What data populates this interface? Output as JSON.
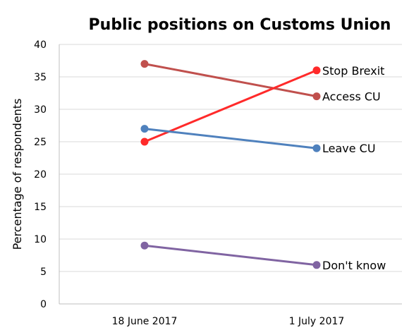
{
  "chart_data": {
    "type": "line",
    "title": "Public positions on Customs Union",
    "xlabel": "",
    "ylabel": "Percentage of respondents",
    "categories": [
      "18 June 2017",
      "1 July 2017"
    ],
    "ylim": [
      0,
      40
    ],
    "yticks": [
      0,
      5,
      10,
      15,
      20,
      25,
      30,
      35,
      40
    ],
    "grid": true,
    "legend": "none",
    "series": [
      {
        "name": "Access CU",
        "values": [
          37,
          32
        ],
        "color": "#C0504D"
      },
      {
        "name": "Stop Brexit",
        "values": [
          25,
          36
        ],
        "color": "#FF2A2A"
      },
      {
        "name": "Leave CU",
        "values": [
          27,
          24
        ],
        "color": "#4F81BD"
      },
      {
        "name": "Don't know",
        "values": [
          9,
          6
        ],
        "color": "#8064A2"
      }
    ]
  }
}
